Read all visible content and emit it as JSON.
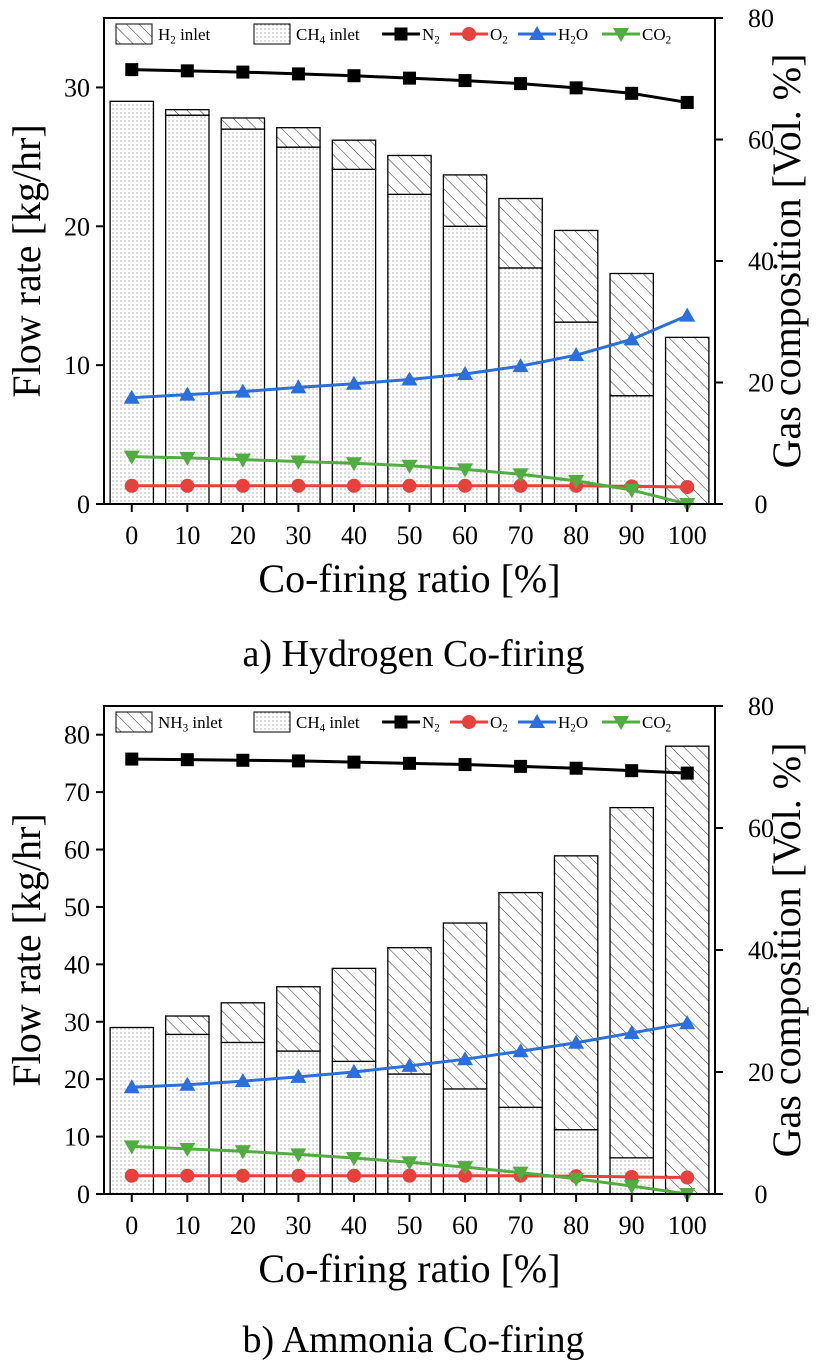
{
  "figure": {
    "captions": [
      "a) Hydrogen Co-firing",
      "b) Ammonia Co-firing"
    ]
  },
  "colors": {
    "N2": "#000000",
    "O2": "#e8403a",
    "H2O": "#2a6fdb",
    "CO2": "#4fae3f"
  },
  "chart_data": [
    {
      "type": "bar",
      "title": "a) Hydrogen Co-firing",
      "xlabel": "Co-firing ratio [%]",
      "ylabel": "Flow rate [kg/hr]",
      "y2label": "Gas composition [Vol. %]",
      "categories": [
        "0",
        "10",
        "20",
        "30",
        "40",
        "50",
        "60",
        "70",
        "80",
        "90",
        "100"
      ],
      "ylim": [
        0,
        35
      ],
      "yticks": [
        0,
        10,
        20,
        30
      ],
      "y2lim": [
        0,
        80
      ],
      "y2ticks": [
        0,
        20,
        40,
        60,
        80
      ],
      "bar_series": [
        {
          "name": "CH4 inlet",
          "label": "CH",
          "sub": "4",
          "suffix": " inlet",
          "pattern": "dots",
          "values": [
            29.0,
            28.0,
            27.0,
            25.7,
            24.1,
            22.3,
            20.0,
            17.0,
            13.1,
            7.8,
            0
          ]
        },
        {
          "name": "H2 inlet",
          "label": "H",
          "sub": "2",
          "suffix": " inlet",
          "pattern": "hatch",
          "values": [
            0,
            0.4,
            0.8,
            1.4,
            2.1,
            2.8,
            3.7,
            5.0,
            6.6,
            8.8,
            12.0
          ]
        }
      ],
      "line_series": [
        {
          "name": "N2",
          "label": "N",
          "sub": "2",
          "marker": "square",
          "color": "#000000",
          "values": [
            71.5,
            71.3,
            71.1,
            70.8,
            70.5,
            70.1,
            69.7,
            69.2,
            68.5,
            67.6,
            66.1
          ]
        },
        {
          "name": "O2",
          "label": "O",
          "sub": "2",
          "marker": "circle",
          "color": "#e8403a",
          "values": [
            3.0,
            3.0,
            3.0,
            3.0,
            3.0,
            3.0,
            3.0,
            3.0,
            3.0,
            2.9,
            2.8
          ]
        },
        {
          "name": "H2O",
          "label": "H",
          "sub": "2",
          "suffix": "O",
          "marker": "triangle-up",
          "color": "#2a6fdb",
          "values": [
            17.5,
            18.0,
            18.5,
            19.2,
            19.8,
            20.5,
            21.4,
            22.7,
            24.5,
            27.1,
            31.0
          ]
        },
        {
          "name": "CO2",
          "label": "CO",
          "sub": "2",
          "marker": "triangle-down",
          "color": "#4fae3f",
          "values": [
            7.8,
            7.6,
            7.3,
            7.0,
            6.7,
            6.3,
            5.7,
            4.9,
            3.8,
            2.3,
            0
          ]
        }
      ]
    },
    {
      "type": "bar",
      "title": "b) Ammonia Co-firing",
      "xlabel": "Co-firing ratio [%]",
      "ylabel": "Flow rate [kg/hr]",
      "y2label": "Gas composition [Vol. %]",
      "categories": [
        "0",
        "10",
        "20",
        "30",
        "40",
        "50",
        "60",
        "70",
        "80",
        "90",
        "100"
      ],
      "ylim": [
        0,
        85
      ],
      "yticks": [
        0,
        10,
        20,
        30,
        40,
        50,
        60,
        70,
        80
      ],
      "y2lim": [
        0,
        80
      ],
      "y2ticks": [
        0,
        20,
        40,
        60,
        80
      ],
      "bar_series": [
        {
          "name": "CH4 inlet",
          "label": "CH",
          "sub": "4",
          "suffix": " inlet",
          "pattern": "dots",
          "values": [
            29.0,
            27.8,
            26.4,
            24.9,
            23.1,
            20.9,
            18.3,
            15.1,
            11.2,
            6.3,
            0
          ]
        },
        {
          "name": "NH3 inlet",
          "label": "NH",
          "sub": "3",
          "suffix": " inlet",
          "pattern": "hatch",
          "values": [
            0,
            3.2,
            6.9,
            11.2,
            16.2,
            22.0,
            28.9,
            37.4,
            47.7,
            61.0,
            78.0
          ]
        }
      ],
      "line_series": [
        {
          "name": "N2",
          "label": "N",
          "sub": "2",
          "marker": "square",
          "color": "#000000",
          "values": [
            71.3,
            71.2,
            71.1,
            71.0,
            70.8,
            70.6,
            70.4,
            70.1,
            69.8,
            69.4,
            69.0
          ]
        },
        {
          "name": "O2",
          "label": "O",
          "sub": "2",
          "marker": "circle",
          "color": "#e8403a",
          "values": [
            3.0,
            3.0,
            3.0,
            3.0,
            3.0,
            3.0,
            3.0,
            3.0,
            2.9,
            2.8,
            2.7
          ]
        },
        {
          "name": "H2O",
          "label": "H",
          "sub": "2",
          "suffix": "O",
          "marker": "triangle-up",
          "color": "#2a6fdb",
          "values": [
            17.5,
            17.9,
            18.5,
            19.2,
            20.0,
            21.0,
            22.1,
            23.4,
            24.8,
            26.4,
            28.0
          ]
        },
        {
          "name": "CO2",
          "label": "CO",
          "sub": "2",
          "marker": "triangle-down",
          "color": "#4fae3f",
          "values": [
            7.8,
            7.4,
            7.0,
            6.5,
            5.9,
            5.2,
            4.4,
            3.5,
            2.5,
            1.3,
            0
          ]
        }
      ]
    }
  ]
}
